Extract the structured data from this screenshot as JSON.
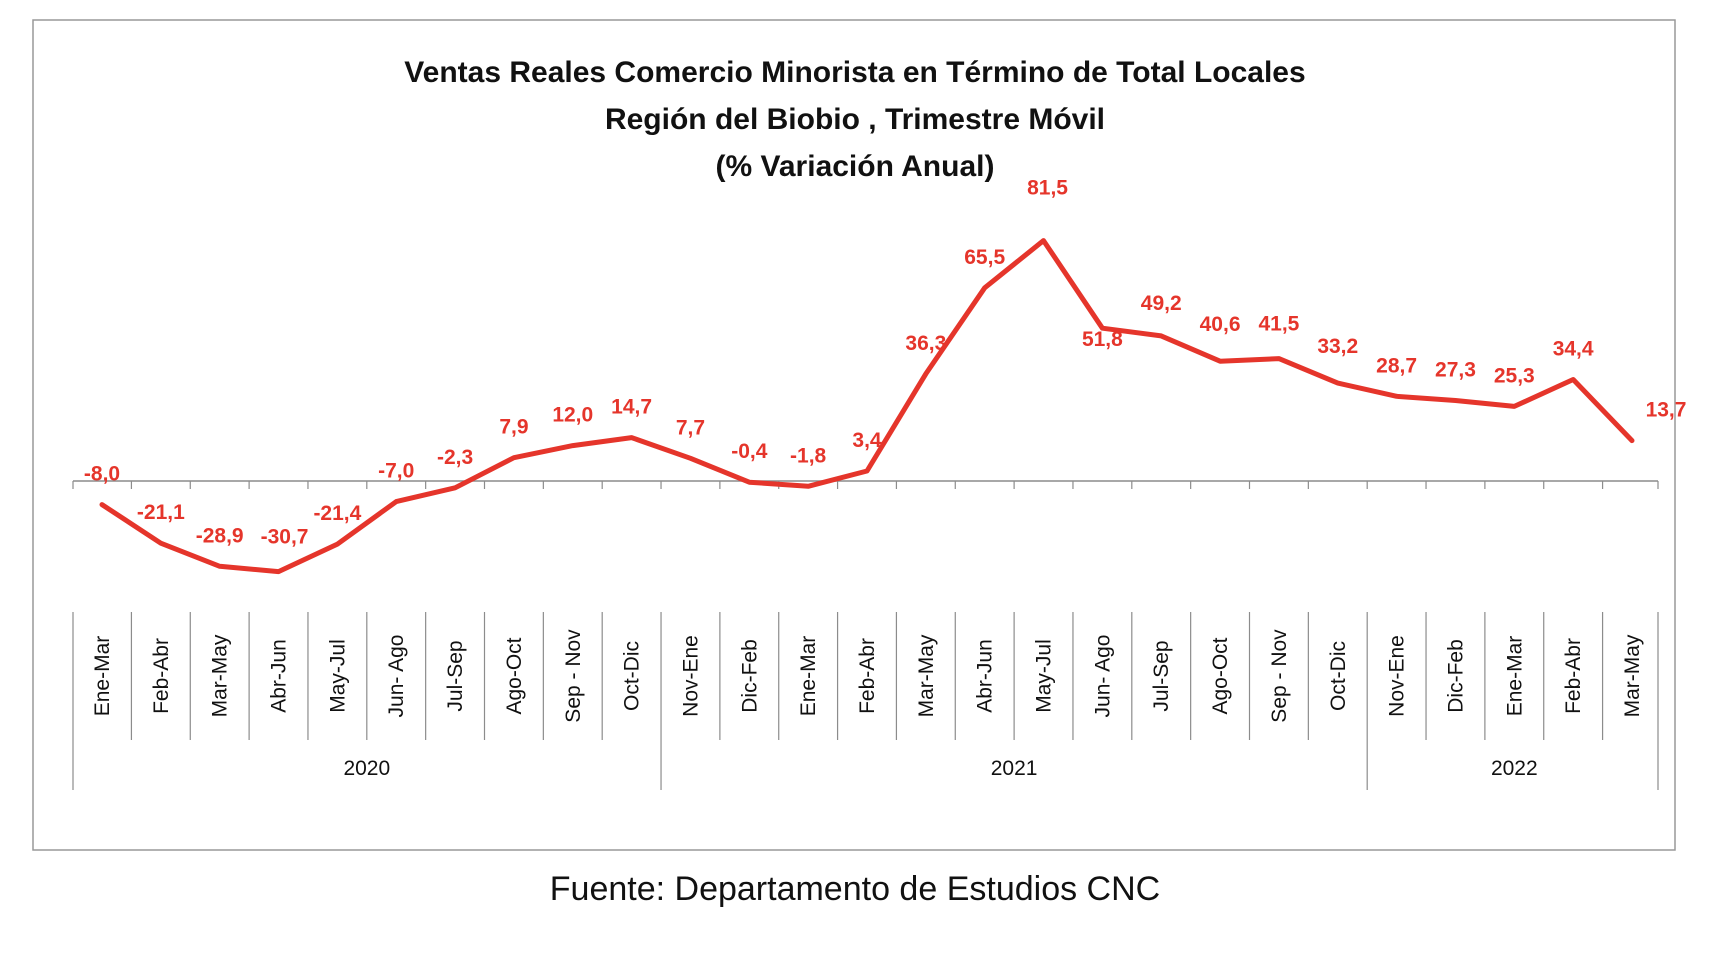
{
  "chart_data": {
    "type": "line",
    "title": "Ventas Reales Comercio Minorista  en Término de Total Locales",
    "subtitle": "Región del Biobio , Trimestre Móvil",
    "subtitle2": "(% Variación Anual)",
    "source": "Fuente: Departamento de Estudios CNC",
    "categories": [
      "Ene-Mar",
      "Feb-Abr",
      "Mar-May",
      "Abr-Jun",
      "May-Jul",
      "Jun- Ago",
      "Jul-Sep",
      "Ago-Oct",
      "Sep - Nov",
      "Oct-Dic",
      "Nov-Ene",
      "Dic-Feb",
      "Ene-Mar",
      "Feb-Abr",
      "Mar-May",
      "Abr-Jun",
      "May-Jul",
      "Jun- Ago",
      "Jul-Sep",
      "Ago-Oct",
      "Sep - Nov",
      "Oct-Dic",
      "Nov-Ene",
      "Dic-Feb",
      "Ene-Mar",
      "Feb-Abr",
      "Mar-May"
    ],
    "years": [
      {
        "label": "2020",
        "start": 0,
        "end": 9
      },
      {
        "label": "2021",
        "start": 10,
        "end": 21
      },
      {
        "label": "2022",
        "start": 22,
        "end": 26
      }
    ],
    "series": [
      {
        "color": "#e5352b",
        "values": [
          -8.0,
          -21.1,
          -28.9,
          -30.7,
          -21.4,
          -7.0,
          -2.3,
          7.9,
          12.0,
          14.7,
          7.7,
          -0.4,
          -1.8,
          3.4,
          36.3,
          65.5,
          81.5,
          51.8,
          49.2,
          40.6,
          41.5,
          33.2,
          28.7,
          27.3,
          25.3,
          34.4,
          13.7
        ],
        "labels": [
          "-8,0",
          "-21,1",
          "-28,9",
          "-30,7",
          "-21,4",
          "-7,0",
          "-2,3",
          "7,9",
          "12,0",
          "14,7",
          "7,7",
          "-0,4",
          "-1,8",
          "3,4",
          "36,3",
          "65,5",
          "81,5",
          "51,8",
          "49,2",
          "40,6",
          "41,5",
          "33,2",
          "28,7",
          "27,3",
          "25,3",
          "34,4",
          "13,7"
        ]
      }
    ],
    "grid": false,
    "legend": "none"
  }
}
